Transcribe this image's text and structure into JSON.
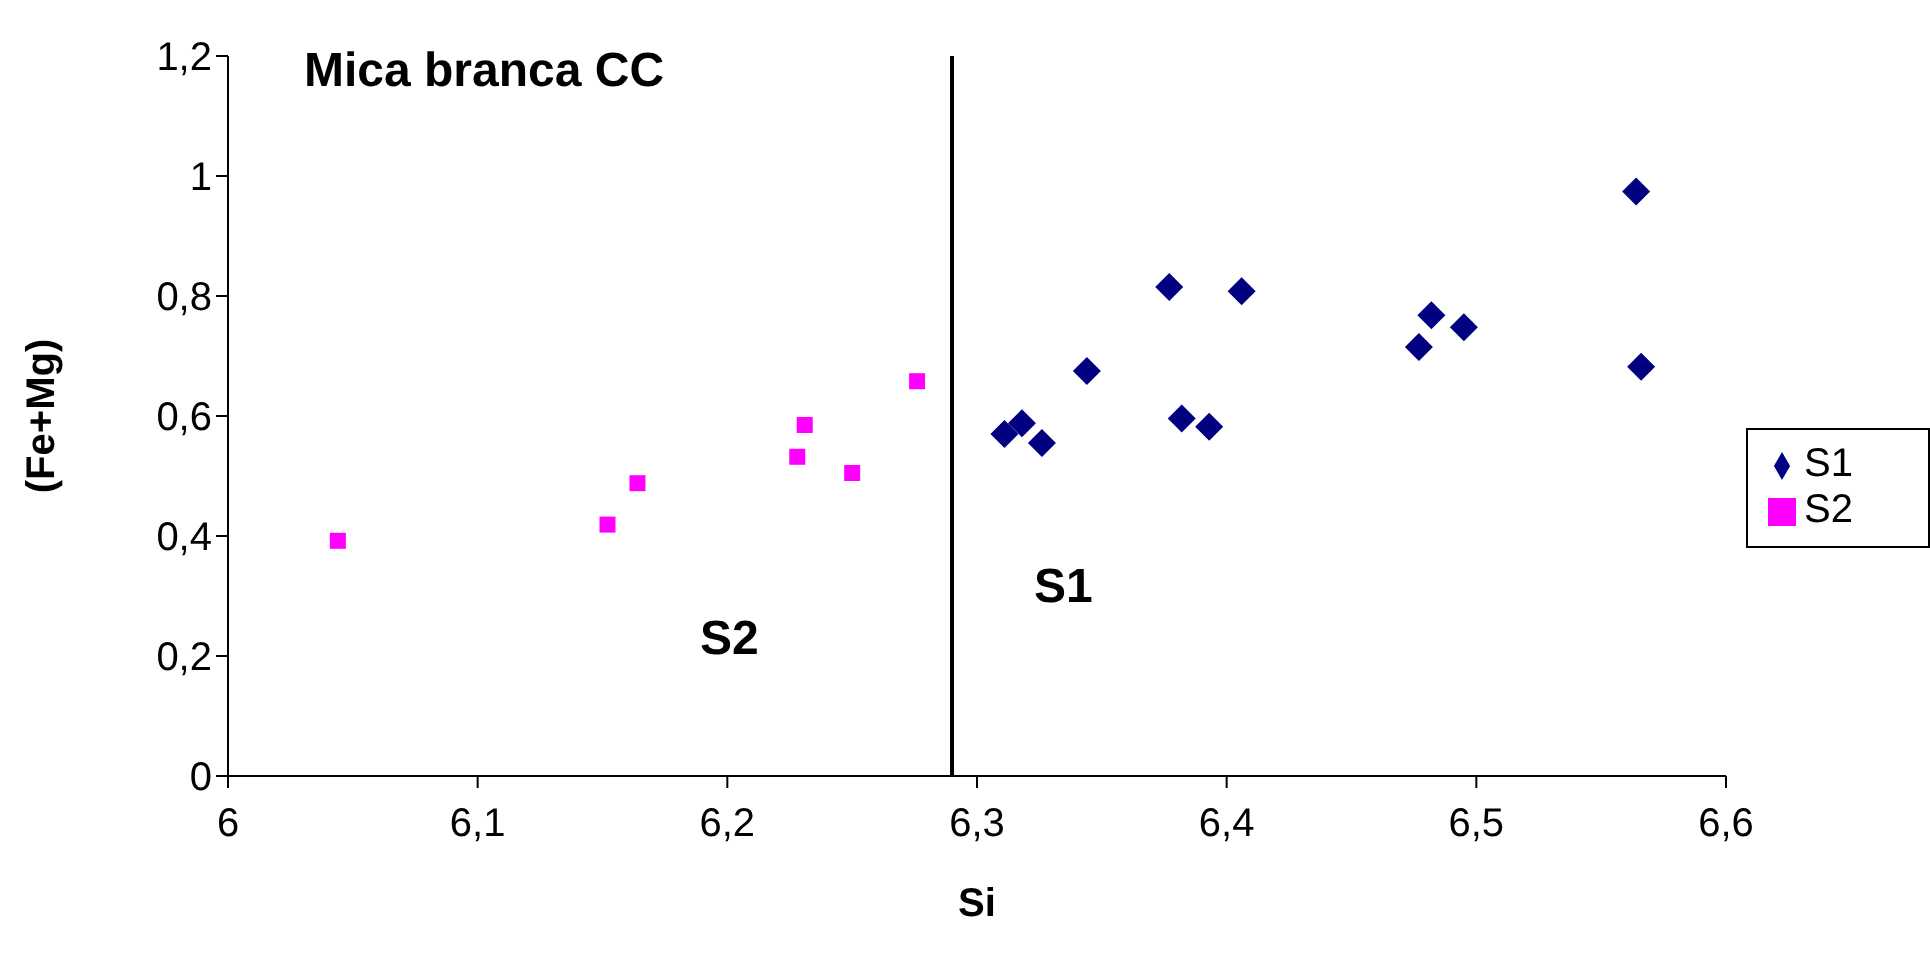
{
  "chart_data": {
    "type": "scatter",
    "title": "Mica branca CC",
    "xlabel": "Si",
    "ylabel": "(Fe+Mg)",
    "xlim": [
      6,
      6.6
    ],
    "xticks": [
      6,
      {
        "value": 6.1,
        "label": "6,1"
      },
      {
        "value": 6.2,
        "label": "6,2"
      },
      {
        "value": 6.3,
        "label": "6,3"
      },
      {
        "value": 6.4,
        "label": "6,4"
      },
      {
        "value": 6.5,
        "label": "6,5"
      },
      {
        "value": 6.6,
        "label": "6,6"
      }
    ],
    "ylim": [
      0,
      1.2
    ],
    "yticks": [
      0,
      {
        "value": 0.2,
        "label": "0,2"
      },
      {
        "value": 0.4,
        "label": "0,4"
      },
      {
        "value": 0.6,
        "label": "0,6"
      },
      {
        "value": 0.8,
        "label": "0,8"
      },
      1,
      {
        "value": 1.2,
        "label": "1,2"
      }
    ],
    "series": [
      {
        "name": "S1",
        "color": "#000080",
        "marker": "diamond",
        "x": [
          6.311,
          6.318,
          6.326,
          6.344,
          6.377,
          6.382,
          6.393,
          6.406,
          6.477,
          6.482,
          6.495,
          6.564,
          6.566
        ],
        "values": [
          0.57,
          0.588,
          0.555,
          0.675,
          0.815,
          0.596,
          0.582,
          0.808,
          0.715,
          0.768,
          0.748,
          0.974,
          0.682
        ]
      },
      {
        "name": "S2",
        "color": "#ff00ff",
        "marker": "square",
        "x": [
          6.044,
          6.152,
          6.164,
          6.228,
          6.231,
          6.25,
          6.276
        ],
        "values": [
          0.392,
          0.419,
          0.488,
          0.532,
          0.585,
          0.505,
          0.658
        ]
      }
    ],
    "ref_lines": [
      {
        "axis": "x",
        "value": 6.29,
        "color": "#000000"
      }
    ],
    "annotations": [
      "S2",
      "S1"
    ],
    "grid": false,
    "legend": "right"
  }
}
